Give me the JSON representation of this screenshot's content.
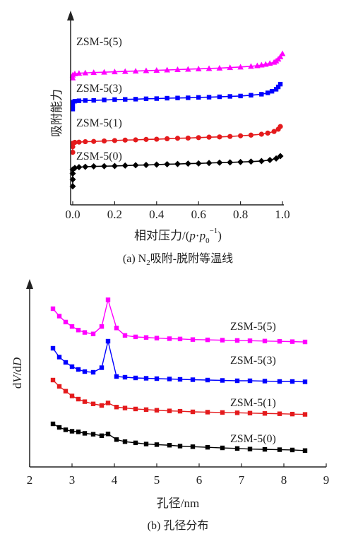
{
  "chart_data": [
    {
      "type": "line",
      "caption": "(a) N吸附-脱附等温线",
      "caption_parts": {
        "prefix": "(a) N",
        "subscript": "2",
        "suffix": "吸附-脱附等温线"
      },
      "xlabel": "相对压力/(p·p",
      "xlabel_parts": {
        "main": "相对压力/(",
        "p1": "p",
        "dot": "·",
        "p2": "p",
        "sub": "0",
        "sup": "−1",
        "close": ")"
      },
      "ylabel": "吸附能力",
      "xlim": [
        0.0,
        1.0
      ],
      "x_tick_labels": [
        "0.0",
        "0.2",
        "0.4",
        "0.6",
        "0.8",
        "1.0"
      ],
      "x_ticks": [
        0.0,
        0.2,
        0.4,
        0.6,
        0.8,
        1.0
      ],
      "y_ticks_shown": false,
      "series": [
        {
          "name": "ZSM-5(0)",
          "color": "#000000",
          "marker": "diamond",
          "x": [
            0,
            0,
            0,
            0,
            0.01,
            0.03,
            0.06,
            0.1,
            0.15,
            0.2,
            0.25,
            0.3,
            0.35,
            0.4,
            0.45,
            0.5,
            0.55,
            0.6,
            0.65,
            0.7,
            0.75,
            0.8,
            0.85,
            0.9,
            0.94,
            0.97,
            0.99
          ],
          "y": [
            0.15,
            0.5,
            0.8,
            1.0,
            1.08,
            1.12,
            1.14,
            1.16,
            1.17,
            1.18,
            1.2,
            1.22,
            1.23,
            1.25,
            1.27,
            1.28,
            1.3,
            1.31,
            1.33,
            1.35,
            1.36,
            1.38,
            1.4,
            1.43,
            1.48,
            1.56,
            1.68
          ]
        },
        {
          "name": "ZSM-5(1)",
          "color": "#e41a1c",
          "marker": "circle",
          "x": [
            0,
            0,
            0,
            0.01,
            0.03,
            0.06,
            0.1,
            0.15,
            0.2,
            0.25,
            0.3,
            0.35,
            0.4,
            0.45,
            0.5,
            0.55,
            0.6,
            0.65,
            0.7,
            0.75,
            0.8,
            0.85,
            0.9,
            0.93,
            0.96,
            0.98,
            0.99
          ],
          "y": [
            0.2,
            0.45,
            0.6,
            0.64,
            0.65,
            0.67,
            0.68,
            0.7,
            0.72,
            0.74,
            0.75,
            0.77,
            0.78,
            0.8,
            0.82,
            0.83,
            0.85,
            0.87,
            0.88,
            0.9,
            0.93,
            0.96,
            1.0,
            1.05,
            1.12,
            1.22,
            1.34
          ]
        },
        {
          "name": "ZSM-5(3)",
          "color": "#0000ff",
          "marker": "square",
          "x": [
            0,
            0,
            0,
            0.01,
            0.03,
            0.06,
            0.1,
            0.15,
            0.2,
            0.25,
            0.3,
            0.35,
            0.4,
            0.45,
            0.5,
            0.55,
            0.6,
            0.65,
            0.7,
            0.75,
            0.8,
            0.85,
            0.9,
            0.93,
            0.95,
            0.97,
            0.98,
            0.99
          ],
          "y": [
            0.2,
            0.4,
            0.55,
            0.6,
            0.62,
            0.63,
            0.64,
            0.66,
            0.68,
            0.69,
            0.7,
            0.72,
            0.73,
            0.75,
            0.76,
            0.77,
            0.79,
            0.8,
            0.82,
            0.84,
            0.86,
            0.9,
            0.95,
            1.02,
            1.1,
            1.2,
            1.32,
            1.46
          ]
        },
        {
          "name": "ZSM-5(5)",
          "color": "#ff00ff",
          "marker": "triangle",
          "x": [
            0,
            0,
            0.01,
            0.03,
            0.06,
            0.1,
            0.15,
            0.2,
            0.25,
            0.3,
            0.35,
            0.4,
            0.45,
            0.5,
            0.55,
            0.6,
            0.65,
            0.7,
            0.75,
            0.8,
            0.85,
            0.88,
            0.9,
            0.92,
            0.94,
            0.96,
            0.97,
            0.98,
            0.99,
            1.0
          ],
          "y": [
            0.3,
            0.45,
            0.52,
            0.55,
            0.57,
            0.59,
            0.61,
            0.63,
            0.65,
            0.67,
            0.69,
            0.71,
            0.73,
            0.75,
            0.77,
            0.79,
            0.81,
            0.83,
            0.86,
            0.89,
            0.93,
            0.96,
            1.0,
            1.04,
            1.09,
            1.15,
            1.22,
            1.32,
            1.45,
            1.62
          ]
        }
      ]
    },
    {
      "type": "line",
      "caption": "(b) 孔径分布",
      "xlabel": "孔径/nm",
      "ylabel_parts": {
        "a": "d",
        "b": "V",
        "c": "/d",
        "d": "D"
      },
      "ylabel": "dV/dD",
      "xlim": [
        2,
        9
      ],
      "x_ticks": [
        2,
        3,
        4,
        5,
        6,
        7,
        8,
        9
      ],
      "x_tick_labels": [
        "2",
        "3",
        "4",
        "5",
        "6",
        "7",
        "8",
        "9"
      ],
      "y_ticks_shown": false,
      "series": [
        {
          "name": "ZSM-5(0)",
          "color": "#000000",
          "marker": "square",
          "x": [
            2.55,
            2.7,
            2.85,
            3.0,
            3.15,
            3.3,
            3.5,
            3.7,
            3.85,
            4.05,
            4.25,
            4.5,
            4.75,
            5.0,
            5.3,
            5.55,
            5.85,
            6.2,
            6.55,
            6.9,
            7.2,
            7.55,
            7.9,
            8.2,
            8.5
          ],
          "y": [
            0.0,
            -0.12,
            -0.2,
            -0.25,
            -0.27,
            -0.32,
            -0.35,
            -0.4,
            -0.34,
            -0.53,
            -0.6,
            -0.64,
            -0.68,
            -0.7,
            -0.72,
            -0.75,
            -0.77,
            -0.79,
            -0.81,
            -0.83,
            -0.85,
            -0.86,
            -0.87,
            -0.88,
            -0.9
          ]
        },
        {
          "name": "ZSM-5(1)",
          "color": "#e41a1c",
          "marker": "square",
          "x": [
            2.55,
            2.7,
            2.85,
            3.0,
            3.15,
            3.3,
            3.5,
            3.7,
            3.85,
            4.05,
            4.25,
            4.5,
            4.75,
            5.0,
            5.3,
            5.55,
            5.85,
            6.2,
            6.55,
            6.9,
            7.2,
            7.55,
            7.9,
            8.2,
            8.5
          ],
          "y": [
            0.0,
            -0.2,
            -0.35,
            -0.5,
            -0.6,
            -0.68,
            -0.75,
            -0.8,
            -0.72,
            -0.85,
            -0.88,
            -0.91,
            -0.93,
            -0.95,
            -0.97,
            -0.98,
            -1.0,
            -1.01,
            -1.02,
            -1.03,
            -1.04,
            -1.05,
            -1.06,
            -1.07,
            -1.08
          ]
        },
        {
          "name": "ZSM-5(3)",
          "color": "#0000ff",
          "marker": "square",
          "x": [
            2.55,
            2.7,
            2.85,
            3.0,
            3.15,
            3.3,
            3.5,
            3.7,
            3.85,
            4.05,
            4.25,
            4.5,
            4.75,
            5.0,
            5.3,
            5.55,
            5.85,
            6.2,
            6.55,
            6.9,
            7.2,
            7.55,
            7.9,
            8.2,
            8.5
          ],
          "y": [
            0.0,
            -0.25,
            -0.4,
            -0.52,
            -0.6,
            -0.66,
            -0.68,
            -0.55,
            0.2,
            -0.8,
            -0.82,
            -0.84,
            -0.85,
            -0.86,
            -0.87,
            -0.88,
            -0.89,
            -0.9,
            -0.91,
            -0.92,
            -0.92,
            -0.93,
            -0.94,
            -0.94,
            -0.95
          ]
        },
        {
          "name": "ZSM-5(5)",
          "color": "#ff00ff",
          "marker": "square",
          "x": [
            2.55,
            2.7,
            2.85,
            3.0,
            3.15,
            3.3,
            3.5,
            3.7,
            3.85,
            4.05,
            4.25,
            4.5,
            4.75,
            5.0,
            5.3,
            5.55,
            5.85,
            6.2,
            6.55,
            6.9,
            7.2,
            7.55,
            7.9,
            8.2,
            8.5
          ],
          "y": [
            0.0,
            -0.25,
            -0.45,
            -0.6,
            -0.72,
            -0.8,
            -0.85,
            -0.6,
            0.3,
            -0.65,
            -0.9,
            -0.95,
            -0.97,
            -0.99,
            -1.01,
            -1.02,
            -1.04,
            -1.05,
            -1.06,
            -1.07,
            -1.08,
            -1.09,
            -1.1,
            -1.11,
            -1.12
          ]
        }
      ]
    }
  ]
}
